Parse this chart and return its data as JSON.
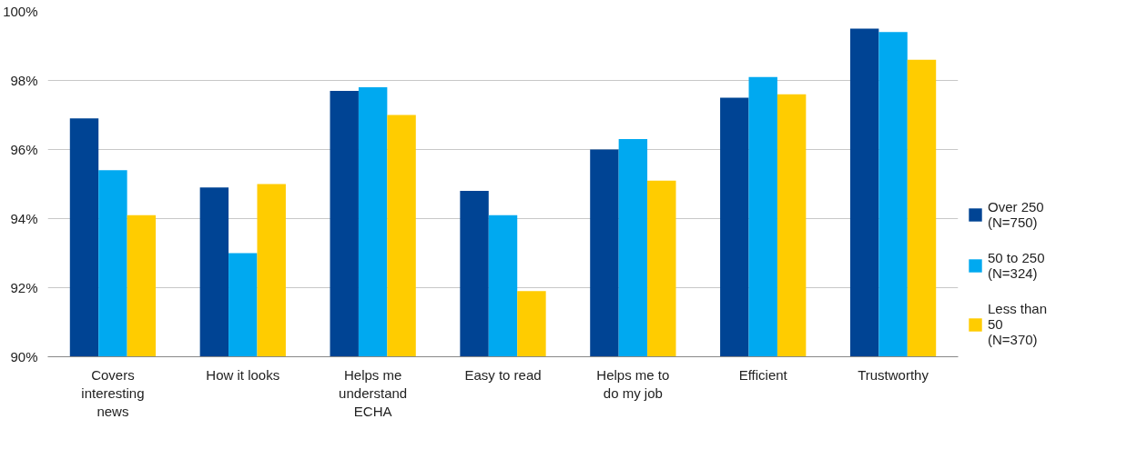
{
  "chart_data": {
    "type": "bar",
    "categories": [
      "Covers interesting news",
      "How it looks",
      "Helps me understand ECHA",
      "Easy to read",
      "Helps me to do my job",
      "Efficient",
      "Trustworthy"
    ],
    "series": [
      {
        "name": "Over 250 (N=750)",
        "color": "#004494",
        "values": [
          96.9,
          94.9,
          97.7,
          94.8,
          96.0,
          97.5,
          99.5
        ]
      },
      {
        "name": "50 to 250 (N=324)",
        "color": "#00a9f0",
        "values": [
          95.4,
          93.0,
          97.8,
          94.1,
          96.3,
          98.1,
          99.4
        ]
      },
      {
        "name": "Less than 50 (N=370)",
        "color": "#ffcc00",
        "values": [
          94.1,
          95.0,
          97.0,
          91.9,
          95.1,
          97.6,
          98.6
        ]
      }
    ],
    "ylim": [
      90,
      100
    ],
    "yticks": [
      {
        "value": 90,
        "label": "90%"
      },
      {
        "value": 92,
        "label": "92%"
      },
      {
        "value": 94,
        "label": "94%"
      },
      {
        "value": 96,
        "label": "96%"
      },
      {
        "value": 98,
        "label": "98%"
      },
      {
        "value": 100,
        "label": "100%"
      }
    ],
    "grid": "y",
    "legend": "right"
  }
}
